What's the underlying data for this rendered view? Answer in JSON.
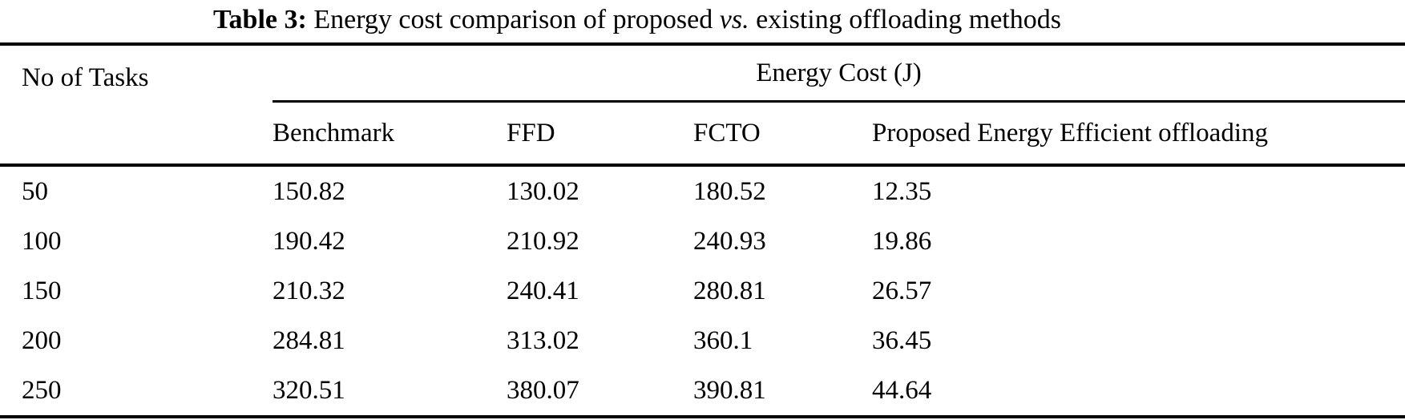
{
  "caption": {
    "label": "Table 3:",
    "text_before_vs": "Energy cost comparison of proposed",
    "vs": "vs.",
    "text_after_vs": "existing offloading methods"
  },
  "table": {
    "col1_header": "No of Tasks",
    "group_header": "Energy Cost (J)",
    "method_headers": [
      "Benchmark",
      "FFD",
      "FCTO",
      "Proposed Energy Efficient offloading"
    ],
    "rows": [
      {
        "tasks": "50",
        "benchmark": "150.82",
        "ffd": "130.02",
        "fcto": "180.52",
        "proposed": "12.35"
      },
      {
        "tasks": "100",
        "benchmark": "190.42",
        "ffd": "210.92",
        "fcto": "240.93",
        "proposed": "19.86"
      },
      {
        "tasks": "150",
        "benchmark": "210.32",
        "ffd": "240.41",
        "fcto": "280.81",
        "proposed": "26.57"
      },
      {
        "tasks": "200",
        "benchmark": "284.81",
        "ffd": "313.02",
        "fcto": "360.1",
        "proposed": "36.45"
      },
      {
        "tasks": "250",
        "benchmark": "320.51",
        "ffd": "380.07",
        "fcto": "390.81",
        "proposed": "44.64"
      }
    ]
  },
  "chart_data": {
    "type": "table",
    "title": "Table 3: Energy cost comparison of proposed vs. existing offloading methods",
    "xlabel": "No of Tasks",
    "ylabel": "Energy Cost (J)",
    "categories": [
      50,
      100,
      150,
      200,
      250
    ],
    "series": [
      {
        "name": "Benchmark",
        "values": [
          150.82,
          190.42,
          210.32,
          284.81,
          320.51
        ]
      },
      {
        "name": "FFD",
        "values": [
          130.02,
          210.92,
          240.41,
          313.02,
          380.07
        ]
      },
      {
        "name": "FCTO",
        "values": [
          180.52,
          240.93,
          280.81,
          360.1,
          390.81
        ]
      },
      {
        "name": "Proposed Energy Efficient offloading",
        "values": [
          12.35,
          19.86,
          26.57,
          36.45,
          44.64
        ]
      }
    ],
    "colors": {
      "text": "#000000",
      "background": "#ffffff",
      "rules": "#000000"
    }
  }
}
